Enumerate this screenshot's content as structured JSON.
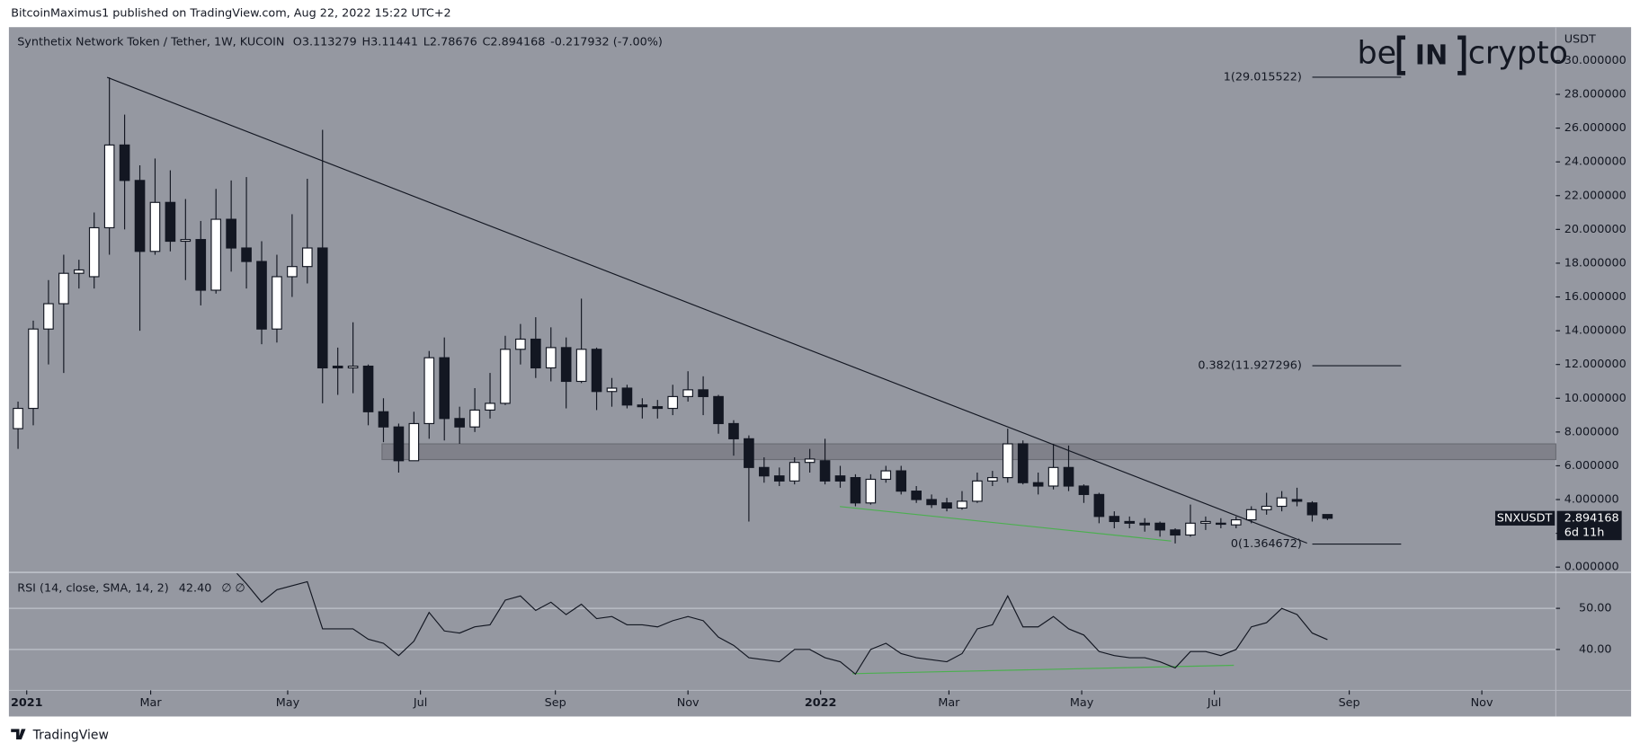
{
  "header": {
    "publisher": "BitcoinMaximus1 published on TradingView.com, Aug 22, 2022 15:22 UTC+2",
    "symbol": "Synthetix Network Token / Tether, 1W, KUCOIN",
    "ohlc_keys": [
      "O",
      "H",
      "L",
      "C"
    ],
    "change": "-0.217932 (-7.00%)"
  },
  "watermark": {
    "left": "be",
    "middle": "IN",
    "right": "crypto"
  },
  "footer": {
    "brand": "TradingView"
  },
  "chart_data": [
    {
      "type": "candlestick",
      "y_unit": "USDT",
      "ticker_tag": "SNXUSDT",
      "countdown": "6d 11h",
      "up_color": "#ffffff",
      "down_color": "#131722",
      "xlim": [
        -0.6,
        101
      ],
      "xticks": [
        {
          "value": 0.57,
          "label": "2021"
        },
        {
          "value": 8.71,
          "label": "Mar"
        },
        {
          "value": 17.71,
          "label": "May"
        },
        {
          "value": 26.43,
          "label": "Jul"
        },
        {
          "value": 35.29,
          "label": "Sep"
        },
        {
          "value": 44,
          "label": "Nov"
        },
        {
          "value": 52.71,
          "label": "2022"
        },
        {
          "value": 61.14,
          "label": "Mar"
        },
        {
          "value": 69.86,
          "label": "May"
        },
        {
          "value": 78.57,
          "label": "Jul"
        },
        {
          "value": 87.43,
          "label": "Sep"
        },
        {
          "value": 96.14,
          "label": "Nov"
        }
      ],
      "ylim": [
        -0.25,
        31.98
      ],
      "yticks": [
        {
          "value": 0,
          "label": "0.000000"
        },
        {
          "value": 2,
          "label": "2.000000"
        },
        {
          "value": 4,
          "label": "4.000000"
        },
        {
          "value": 6,
          "label": "6.000000"
        },
        {
          "value": 8,
          "label": "8.000000"
        },
        {
          "value": 10,
          "label": "10.000000"
        },
        {
          "value": 12,
          "label": "12.000000"
        },
        {
          "value": 14,
          "label": "14.000000"
        },
        {
          "value": 16,
          "label": "16.000000"
        },
        {
          "value": 18,
          "label": "18.000000"
        },
        {
          "value": 20,
          "label": "20.000000"
        },
        {
          "value": 22,
          "label": "22.000000"
        },
        {
          "value": 24,
          "label": "24.000000"
        },
        {
          "value": 26,
          "label": "26.000000"
        },
        {
          "value": 28,
          "label": "28.000000"
        },
        {
          "value": 30,
          "label": "30.000000"
        }
      ],
      "fib_levels": [
        {
          "label": "1(29.015522)",
          "value": 29.015522
        },
        {
          "label": "0.382(11.927296)",
          "value": 11.927296
        },
        {
          "label": "0(1.364672)",
          "value": 1.364672
        }
      ],
      "open": [
        8.2,
        9.4,
        14.1,
        15.6,
        17.4,
        17.2,
        20.1,
        25.0,
        22.9,
        18.7,
        21.6,
        19.3,
        19.4,
        16.4,
        20.6,
        18.9,
        18.1,
        14.1,
        17.2,
        17.8,
        18.9,
        11.9,
        11.8,
        11.9,
        9.2,
        8.3,
        6.3,
        8.5,
        12.4,
        8.8,
        8.3,
        9.3,
        9.7,
        12.9,
        13.5,
        11.8,
        13.0,
        11.0,
        12.9,
        10.4,
        10.6,
        9.6,
        9.5,
        9.4,
        10.1,
        10.5,
        10.1,
        8.5,
        7.6,
        5.9,
        5.4,
        5.1,
        6.2,
        6.3,
        5.4,
        5.3,
        3.8,
        5.2,
        5.7,
        4.5,
        4.0,
        3.8,
        3.5,
        3.9,
        5.1,
        5.3,
        7.3,
        5.0,
        4.8,
        5.9,
        4.8,
        4.3,
        3.0,
        2.7,
        2.6,
        2.6,
        2.2,
        1.9,
        2.6,
        2.6,
        2.5,
        2.8,
        3.4,
        3.6,
        4.0,
        3.8,
        3.113279
      ],
      "high": [
        9.8,
        14.6,
        17.0,
        18.5,
        18.2,
        21.0,
        29.0,
        26.8,
        23.8,
        24.2,
        23.5,
        21.8,
        20.5,
        22.4,
        22.9,
        23.1,
        19.3,
        18.5,
        20.9,
        23.0,
        25.9,
        13.0,
        14.5,
        12.0,
        10.0,
        8.5,
        9.2,
        12.8,
        13.6,
        9.5,
        10.6,
        11.5,
        13.7,
        14.4,
        14.8,
        14.2,
        13.6,
        15.9,
        13.0,
        11.2,
        10.8,
        10.0,
        9.9,
        10.8,
        11.6,
        11.3,
        10.2,
        8.7,
        7.8,
        6.5,
        5.9,
        6.5,
        7.0,
        7.6,
        6.0,
        5.5,
        5.5,
        6.0,
        6.0,
        4.8,
        4.3,
        4.1,
        4.5,
        5.6,
        5.7,
        8.2,
        7.5,
        5.6,
        7.3,
        7.2,
        4.9,
        4.4,
        3.3,
        3.0,
        2.9,
        2.7,
        2.3,
        3.7,
        3.0,
        2.9,
        3.0,
        3.6,
        4.4,
        4.5,
        4.7,
        3.9,
        3.11441
      ],
      "low": [
        7.0,
        8.4,
        12.0,
        11.5,
        16.5,
        16.5,
        18.5,
        20.0,
        14.0,
        18.5,
        18.7,
        17.0,
        15.5,
        16.2,
        17.5,
        16.5,
        13.2,
        13.3,
        16.0,
        16.8,
        9.7,
        10.2,
        10.3,
        8.4,
        7.4,
        5.6,
        6.3,
        7.6,
        7.5,
        7.3,
        8.0,
        8.8,
        9.6,
        12.0,
        11.2,
        11.0,
        9.4,
        10.9,
        9.3,
        9.5,
        9.4,
        8.8,
        8.8,
        9.0,
        9.8,
        9.0,
        7.9,
        6.6,
        2.7,
        5.0,
        4.8,
        4.9,
        5.6,
        4.9,
        4.7,
        3.6,
        3.7,
        5.0,
        4.3,
        3.8,
        3.5,
        3.3,
        3.4,
        3.8,
        4.8,
        5.0,
        4.9,
        4.3,
        4.6,
        4.5,
        3.8,
        2.6,
        2.3,
        2.3,
        2.1,
        1.8,
        1.4,
        1.8,
        2.2,
        2.3,
        2.3,
        2.6,
        3.1,
        3.3,
        3.6,
        2.7,
        2.78676
      ],
      "close": [
        9.4,
        14.1,
        15.6,
        17.4,
        17.6,
        20.1,
        25.0,
        22.9,
        18.7,
        21.6,
        19.3,
        19.4,
        16.4,
        20.6,
        18.9,
        18.1,
        14.1,
        17.2,
        17.8,
        18.9,
        11.8,
        11.8,
        11.9,
        9.2,
        8.3,
        6.3,
        8.5,
        12.4,
        8.8,
        8.3,
        9.3,
        9.7,
        12.9,
        13.5,
        11.8,
        13.0,
        11.0,
        12.9,
        10.4,
        10.6,
        9.6,
        9.5,
        9.4,
        10.1,
        10.5,
        10.1,
        8.5,
        7.6,
        5.9,
        5.4,
        5.1,
        6.2,
        6.4,
        5.1,
        5.1,
        3.8,
        5.2,
        5.7,
        4.5,
        4.0,
        3.7,
        3.5,
        3.9,
        5.1,
        5.3,
        7.3,
        5.0,
        4.8,
        5.9,
        4.8,
        4.3,
        3.0,
        2.7,
        2.6,
        2.5,
        2.2,
        1.9,
        2.6,
        2.7,
        2.6,
        2.8,
        3.4,
        3.6,
        4.1,
        3.9,
        3.1,
        2.894168
      ]
    },
    {
      "type": "line",
      "title": "RSI (14, close, SMA, 14, 2)",
      "legend_value": "42.40",
      "legend_extra": "∅ ∅",
      "color": "#131722",
      "ylim": [
        30.3,
        58.5
      ],
      "yticks": [
        {
          "value": 50,
          "label": "50.00"
        },
        {
          "value": 40,
          "label": "40.00"
        }
      ],
      "values": [
        null,
        null,
        null,
        null,
        null,
        null,
        null,
        null,
        null,
        null,
        null,
        null,
        null,
        null,
        60,
        56,
        51.5,
        54.5,
        55.5,
        56.5,
        45,
        45,
        45,
        42.5,
        41.5,
        38.5,
        42,
        49,
        44.5,
        44,
        45.5,
        46,
        52,
        53,
        49.5,
        51.5,
        48.5,
        51,
        47.5,
        48,
        46,
        46,
        45.5,
        47,
        48,
        47,
        43,
        41,
        38,
        37.5,
        37,
        40,
        40,
        38,
        37,
        34,
        40,
        41.5,
        39,
        38,
        37.5,
        37,
        39,
        45,
        46,
        53,
        45.5,
        45.5,
        48,
        45,
        43.5,
        39.5,
        38.5,
        38,
        38,
        37,
        35.5,
        39.5,
        39.5,
        38.5,
        40,
        45.5,
        46.5,
        50,
        48.5,
        44,
        42.4
      ]
    }
  ]
}
